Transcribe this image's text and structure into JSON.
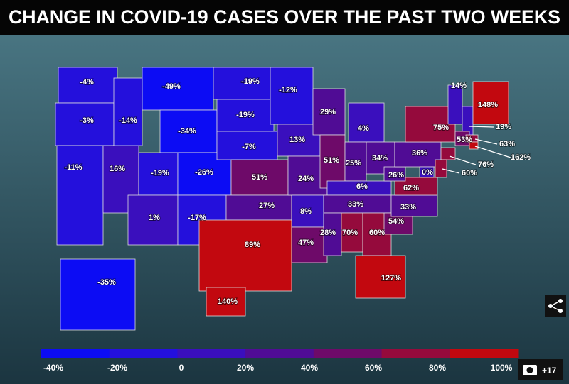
{
  "header": {
    "title": "CHANGE IN COVID-19 CASES OVER THE PAST TWO WEEKS"
  },
  "regions": [
    {
      "value": -4,
      "label": "-4%"
    },
    {
      "value": -3,
      "label": "-3%"
    },
    {
      "value": -11,
      "label": "-11%"
    },
    {
      "value": 16,
      "label": "16%"
    },
    {
      "value": -14,
      "label": "-14%"
    },
    {
      "value": -49,
      "label": "-49%"
    },
    {
      "value": -34,
      "label": "-34%"
    },
    {
      "value": -19,
      "label": "-19%"
    },
    {
      "value": 1,
      "label": "1%"
    },
    {
      "value": -26,
      "label": "-26%"
    },
    {
      "value": -17,
      "label": "-17%"
    },
    {
      "value": -19,
      "label": "-19%"
    },
    {
      "value": -19,
      "label": "-19%"
    },
    {
      "value": -7,
      "label": "-7%"
    },
    {
      "value": 51,
      "label": "51%"
    },
    {
      "value": 27,
      "label": "27%"
    },
    {
      "value": 89,
      "label": "89%"
    },
    {
      "value": -12,
      "label": "-12%"
    },
    {
      "value": 13,
      "label": "13%"
    },
    {
      "value": 24,
      "label": "24%"
    },
    {
      "value": 8,
      "label": "8%"
    },
    {
      "value": 47,
      "label": "47%"
    },
    {
      "value": 29,
      "label": "29%"
    },
    {
      "value": 51,
      "label": "51%"
    },
    {
      "value": 4,
      "label": "4%"
    },
    {
      "value": 25,
      "label": "25%"
    },
    {
      "value": 34,
      "label": "34%"
    },
    {
      "value": 6,
      "label": "6%"
    },
    {
      "value": 33,
      "label": "33%"
    },
    {
      "value": 28,
      "label": "28%"
    },
    {
      "value": 70,
      "label": "70%"
    },
    {
      "value": 60,
      "label": "60%"
    },
    {
      "value": 127,
      "label": "127%"
    },
    {
      "value": 54,
      "label": "54%"
    },
    {
      "value": 33,
      "label": "33%"
    },
    {
      "value": 62,
      "label": "62%"
    },
    {
      "value": 26,
      "label": "26%"
    },
    {
      "value": 36,
      "label": "36%"
    },
    {
      "value": 75,
      "label": "75%"
    },
    {
      "value": 0,
      "label": "0%"
    },
    {
      "value": 14,
      "label": "14%"
    },
    {
      "value": 19,
      "label": "19%"
    },
    {
      "value": 148,
      "label": "148%"
    },
    {
      "value": 53,
      "label": "53%"
    },
    {
      "value": 63,
      "label": "63%"
    },
    {
      "value": 162,
      "label": "162%"
    },
    {
      "value": 76,
      "label": "76%"
    },
    {
      "value": 60,
      "label": "60%"
    },
    {
      "value": -35,
      "label": "-35%"
    },
    {
      "value": 140,
      "label": "140%"
    }
  ],
  "legend": {
    "colors": [
      "#0c0cf4",
      "#2410dc",
      "#3a0fbd",
      "#500c95",
      "#6e0a69",
      "#950a3c",
      "#c2080f"
    ],
    "ticks": [
      {
        "value": -40,
        "label": "-40%"
      },
      {
        "value": -20,
        "label": "-20%"
      },
      0,
      {
        "value": 20,
        "label": "20%"
      },
      {
        "value": 40,
        "label": "40%"
      },
      {
        "value": 60,
        "label": "60%"
      },
      {
        "value": 80,
        "label": "80%"
      },
      {
        "value": 100,
        "label": "100%"
      }
    ]
  },
  "gallery": {
    "count": "+17"
  }
}
